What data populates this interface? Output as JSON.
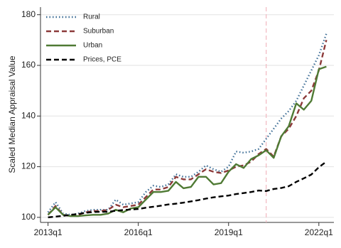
{
  "chart_data": {
    "type": "line",
    "ylabel": "Scaled Median Appraisal Value",
    "x": [
      2013,
      2013.25,
      2013.5,
      2013.75,
      2014,
      2014.25,
      2014.5,
      2014.75,
      2015,
      2015.25,
      2015.5,
      2015.75,
      2016,
      2016.25,
      2016.5,
      2016.75,
      2017,
      2017.25,
      2017.5,
      2017.75,
      2018,
      2018.25,
      2018.5,
      2018.75,
      2019,
      2019.25,
      2019.5,
      2019.75,
      2020,
      2020.25,
      2020.5,
      2020.75,
      2021,
      2021.25,
      2021.5,
      2021.75,
      2022,
      2022.25
    ],
    "xlim": [
      2012.75,
      2022.5
    ],
    "xticks": [
      {
        "value": 2013,
        "label": "2013q1"
      },
      {
        "value": 2016,
        "label": "2016q1"
      },
      {
        "value": 2019,
        "label": "2019q1"
      },
      {
        "value": 2022,
        "label": "2022q1"
      }
    ],
    "ylim": [
      98,
      183
    ],
    "yticks": [
      100,
      120,
      140,
      160,
      180
    ],
    "grid": true,
    "legend": "upper-left",
    "vline": {
      "x": 2020.25,
      "color": "#f2b8c0"
    },
    "series": [
      {
        "name": "Rural",
        "color": "#3e6e96",
        "style": "dot",
        "values": [
          102,
          106,
          101.5,
          101,
          101.5,
          102.5,
          103,
          103,
          103,
          107,
          105,
          105.5,
          106,
          110,
          112.5,
          112,
          113,
          117,
          116,
          116,
          118,
          120.5,
          119,
          118,
          120,
          126,
          125.5,
          126,
          127,
          131,
          135,
          139,
          142,
          146,
          152,
          158,
          164,
          172.5
        ]
      },
      {
        "name": "Suburban",
        "color": "#8c3a3a",
        "style": "dash",
        "values": [
          101,
          104.5,
          101,
          100.5,
          101,
          102,
          102.5,
          102.5,
          103,
          105,
          104,
          104.5,
          105,
          108,
          111,
          111,
          112,
          116,
          115,
          115,
          117,
          119,
          118,
          117.5,
          118.5,
          120,
          120.5,
          122,
          125,
          127,
          124,
          132,
          135,
          140,
          147,
          150,
          158,
          170
        ]
      },
      {
        "name": "Urban",
        "color": "#4f7a34",
        "style": "solid",
        "values": [
          101,
          104,
          101,
          100.5,
          100.5,
          100.8,
          101,
          101,
          101.5,
          103,
          102,
          103.5,
          104,
          107,
          110,
          110,
          110.5,
          114,
          111.5,
          112,
          116,
          116,
          113,
          113.5,
          118,
          121,
          119.5,
          123,
          124.5,
          126.5,
          123.5,
          132,
          136,
          145,
          142.5,
          146,
          158.5,
          159.5
        ]
      },
      {
        "name": "Prices, PCE",
        "color": "#000000",
        "style": "dash",
        "values": [
          100,
          100.3,
          100.6,
          101,
          101.3,
          101.8,
          102.1,
          102.2,
          102.2,
          102.6,
          102.9,
          103.1,
          103.3,
          103.8,
          104.2,
          104.6,
          105.1,
          105.4,
          105.8,
          106.3,
          106.8,
          107.4,
          107.9,
          108.3,
          108.6,
          109.2,
          109.6,
          110,
          110.6,
          110.4,
          111.2,
          111.6,
          112.3,
          114,
          115.4,
          116.9,
          119.8,
          122
        ]
      }
    ]
  }
}
